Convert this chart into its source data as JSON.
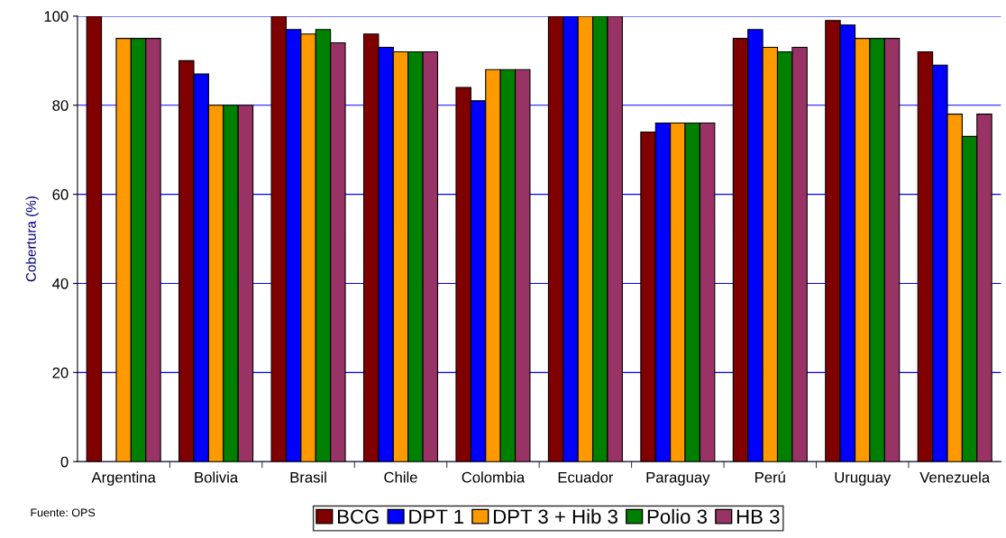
{
  "chart_data": {
    "type": "bar",
    "ylabel": "Cobertura (%)",
    "categories": [
      "Argentina",
      "Bolivia",
      "Brasil",
      "Chile",
      "Colombia",
      "Ecuador",
      "Paraguay",
      "Perú",
      "Uruguay",
      "Venezuela"
    ],
    "series": [
      {
        "name": "BCG",
        "color": "#800000",
        "values": [
          100,
          90,
          100,
          96,
          84,
          100,
          74,
          95,
          99,
          92
        ]
      },
      {
        "name": "DPT 1",
        "color": "#0000ff",
        "values": [
          null,
          87,
          97,
          93,
          81,
          100,
          76,
          97,
          98,
          89
        ]
      },
      {
        "name": "DPT 3 + Hib 3",
        "color": "#ff9900",
        "values": [
          95,
          80,
          96,
          92,
          88,
          100,
          76,
          93,
          95,
          78
        ]
      },
      {
        "name": "Polio 3",
        "color": "#008000",
        "values": [
          95,
          80,
          97,
          92,
          88,
          100,
          76,
          92,
          95,
          73
        ]
      },
      {
        "name": "HB 3",
        "color": "#993366",
        "values": [
          95,
          80,
          94,
          92,
          88,
          100,
          76,
          93,
          95,
          78
        ]
      }
    ],
    "ylim": [
      0,
      100
    ],
    "yticks": [
      0,
      20,
      40,
      60,
      80,
      100
    ],
    "grid": "y",
    "legend": "bottom",
    "annotations": [
      "Fuente: OPS"
    ]
  }
}
